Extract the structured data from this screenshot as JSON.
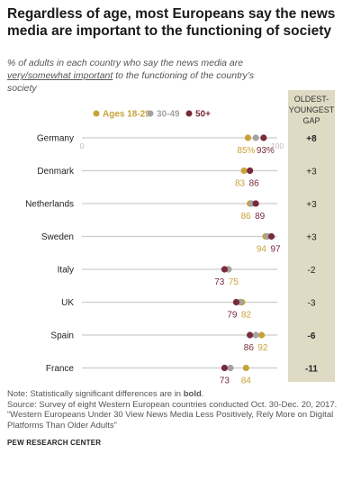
{
  "title": "Regardless of age, most Europeans say the news media are important to the functioning of society",
  "subtitle": {
    "before": "% of adults in each country who say the news media are ",
    "emphasis": "very/somewhat important",
    "after": " to the functioning of the country’s society"
  },
  "gap_header": [
    "OLDEST-",
    "YOUNGEST",
    "GAP"
  ],
  "colors": {
    "age_18_29": "#c9a23a",
    "age_30_49": "#a3a3a3",
    "age_50_plus": "#7a2a3a",
    "gap_column": "#dfdac3",
    "axis_line": "#cccccc"
  },
  "chart_data": {
    "type": "dot",
    "x_range": [
      0,
      100
    ],
    "x_ticks": [
      "0",
      "100"
    ],
    "series": [
      {
        "name": "Ages 18-29",
        "key": "age_18_29"
      },
      {
        "name": "30-49",
        "key": "age_30_49"
      },
      {
        "name": "50+",
        "key": "age_50_plus"
      }
    ],
    "rows": [
      {
        "country": "Germany",
        "y1829": 85,
        "y3049": 89,
        "y50": 93,
        "gap": "+8",
        "gap_bold": true,
        "labels": [
          {
            "text": "85%",
            "s": "age_18_29"
          },
          {
            "text": "93%",
            "s": "age_50_plus"
          }
        ]
      },
      {
        "country": "Denmark",
        "y1829": 83,
        "y3049": 86,
        "y50": 86,
        "gap": "+3",
        "gap_bold": false,
        "labels": [
          {
            "text": "83",
            "s": "age_18_29"
          },
          {
            "text": "86",
            "s": "age_50_plus"
          }
        ]
      },
      {
        "country": "Netherlands",
        "y1829": 86,
        "y3049": 87,
        "y50": 89,
        "gap": "+3",
        "gap_bold": false,
        "labels": [
          {
            "text": "86",
            "s": "age_18_29"
          },
          {
            "text": "89",
            "s": "age_50_plus"
          }
        ]
      },
      {
        "country": "Sweden",
        "y1829": 94,
        "y3049": 95,
        "y50": 97,
        "gap": "+3",
        "gap_bold": false,
        "labels": [
          {
            "text": "94",
            "s": "age_18_29"
          },
          {
            "text": "97",
            "s": "age_50_plus"
          }
        ]
      },
      {
        "country": "Italy",
        "y1829": 75,
        "y3049": 75,
        "y50": 73,
        "gap": "-2",
        "gap_bold": false,
        "labels": [
          {
            "text": "73",
            "s": "age_50_plus"
          },
          {
            "text": "75",
            "s": "age_18_29"
          }
        ]
      },
      {
        "country": "UK",
        "y1829": 82,
        "y3049": 81,
        "y50": 79,
        "gap": "-3",
        "gap_bold": false,
        "labels": [
          {
            "text": "79",
            "s": "age_50_plus"
          },
          {
            "text": "82",
            "s": "age_18_29"
          }
        ]
      },
      {
        "country": "Spain",
        "y1829": 92,
        "y3049": 89,
        "y50": 86,
        "gap": "-6",
        "gap_bold": true,
        "labels": [
          {
            "text": "86",
            "s": "age_50_plus"
          },
          {
            "text": "92",
            "s": "age_18_29"
          }
        ]
      },
      {
        "country": "France",
        "y1829": 84,
        "y3049": 76,
        "y50": 73,
        "gap": "-11",
        "gap_bold": true,
        "labels": [
          {
            "text": "73",
            "s": "age_50_plus"
          },
          {
            "text": "84",
            "s": "age_18_29"
          }
        ]
      }
    ]
  },
  "notes": {
    "note_before": "Note: Statistically significant differences are in ",
    "note_bold": "bold",
    "note_after": ".",
    "source": "Source: Survey of eight Western European countries conducted Oct. 30-Dec. 20, 2017.",
    "report": "“Western Europeans Under 30 View News Media Less Positively, Rely More on Digital Platforms Than Older Adults”"
  },
  "source_org": "PEW RESEARCH CENTER"
}
